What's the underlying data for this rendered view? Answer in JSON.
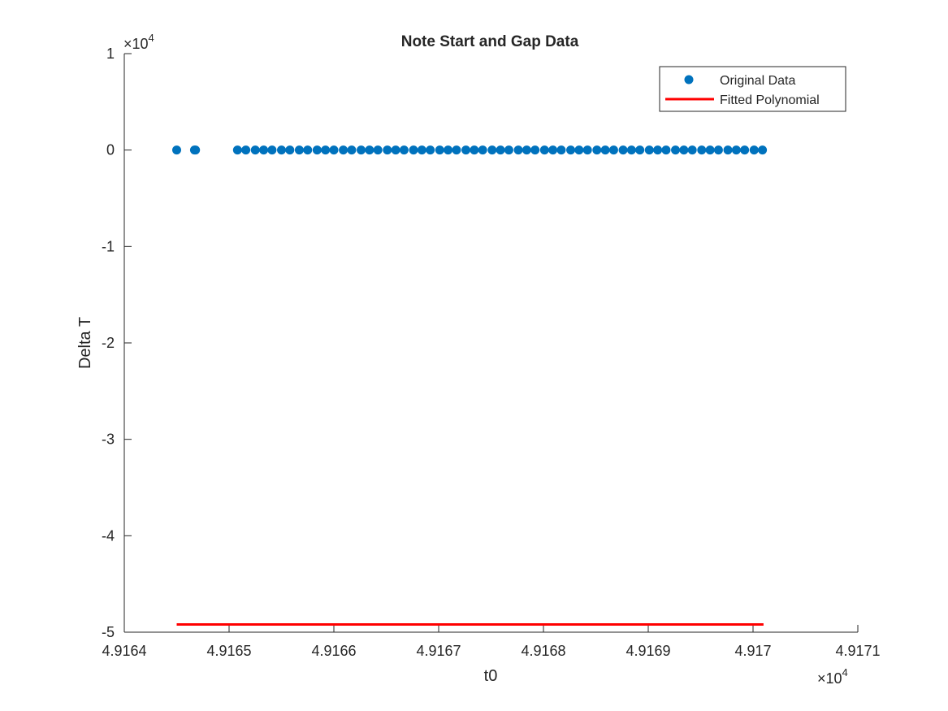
{
  "chart_data": {
    "type": "scatter",
    "title": "Note Start and Gap Data",
    "xlabel": "t0",
    "ylabel": "Delta T",
    "x_exponent_label": "10",
    "x_exponent_power": "4",
    "y_exponent_label": "10",
    "y_exponent_power": "4",
    "x_times": "×",
    "y_times": "×",
    "xlim": [
      4.9164,
      4.9171
    ],
    "ylim": [
      -5,
      1
    ],
    "xticks": [
      4.9164,
      4.9165,
      4.9166,
      4.9167,
      4.9168,
      4.9169,
      4.917,
      4.9171
    ],
    "xtick_labels": [
      "4.9164",
      "4.9165",
      "4.9166",
      "4.9167",
      "4.9168",
      "4.9169",
      "4.917",
      "4.9171"
    ],
    "yticks": [
      -5,
      -4,
      -3,
      -2,
      -1,
      0,
      1
    ],
    "ytick_labels": [
      "-5",
      "-4",
      "-3",
      "-2",
      "-1",
      "0",
      "1"
    ],
    "grid": false,
    "legend_position": "top-right",
    "series": [
      {
        "name": "Original Data",
        "kind": "markers",
        "color": "#0072BD",
        "x": [
          4.91645,
          4.916467,
          4.916468,
          4.916508,
          4.916516,
          4.916525,
          4.916533,
          4.916541,
          4.91655,
          4.916558,
          4.916567,
          4.916575,
          4.916584,
          4.916592,
          4.9166,
          4.916609,
          4.916617,
          4.916626,
          4.916634,
          4.916642,
          4.916651,
          4.916659,
          4.916667,
          4.916676,
          4.916684,
          4.916692,
          4.916701,
          4.916709,
          4.916717,
          4.916726,
          4.916734,
          4.916742,
          4.916751,
          4.916759,
          4.916767,
          4.916776,
          4.916784,
          4.916792,
          4.916801,
          4.916809,
          4.916817,
          4.916826,
          4.916834,
          4.916842,
          4.916851,
          4.916859,
          4.916867,
          4.916876,
          4.916884,
          4.916892,
          4.916901,
          4.916909,
          4.916917,
          4.916926,
          4.916934,
          4.916942,
          4.916951,
          4.916959,
          4.916967,
          4.916976,
          4.916984,
          4.916992,
          4.917001,
          4.917009
        ],
        "y": [
          0,
          0,
          0,
          0,
          0,
          0,
          0,
          0,
          0,
          0,
          0,
          0,
          0,
          0,
          0,
          0,
          0,
          0,
          0,
          0,
          0,
          0,
          0,
          0,
          0,
          0,
          0,
          0,
          0,
          0,
          0,
          0,
          0,
          0,
          0,
          0,
          0,
          0,
          0,
          0,
          0,
          0,
          0,
          0,
          0,
          0,
          0,
          0,
          0,
          0,
          0,
          0,
          0,
          0,
          0,
          0,
          0,
          0,
          0,
          0,
          0,
          0,
          0,
          0
        ]
      },
      {
        "name": "Fitted Polynomial",
        "kind": "line",
        "color": "#FF0000",
        "x": [
          4.91645,
          4.91701
        ],
        "y": [
          -4.92,
          -4.92
        ]
      }
    ]
  }
}
